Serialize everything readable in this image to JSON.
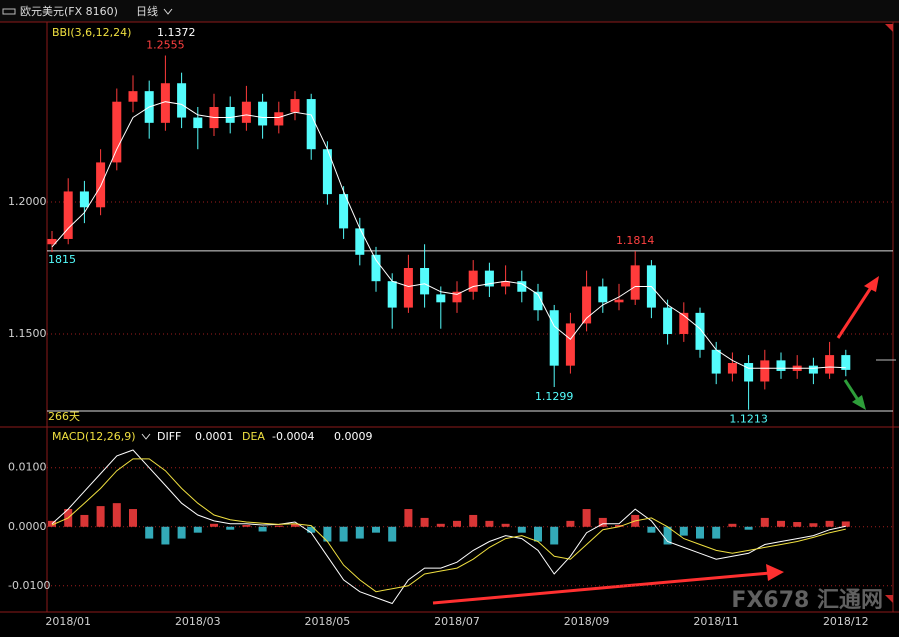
{
  "header": {
    "symbol": "欧元美元(FX 8160)",
    "period": "日线"
  },
  "watermark": "FX678 汇通网",
  "chart_data": [
    {
      "type": "candlestick",
      "categories": [
        null,
        "2018/01",
        null,
        null,
        null,
        null,
        null,
        null,
        null,
        "2018/03",
        null,
        null,
        null,
        null,
        null,
        null,
        null,
        "2018/05",
        null,
        null,
        null,
        null,
        null,
        null,
        null,
        "2018/07",
        null,
        null,
        null,
        null,
        null,
        null,
        null,
        "2018/09",
        null,
        null,
        null,
        null,
        null,
        null,
        null,
        "2018/11",
        null,
        null,
        null,
        null,
        null,
        null,
        null,
        "2018/12"
      ],
      "open": [
        1.184,
        1.186,
        1.204,
        1.198,
        1.215,
        1.238,
        1.242,
        1.23,
        1.245,
        1.232,
        1.228,
        1.236,
        1.23,
        1.238,
        1.229,
        1.234,
        1.239,
        1.22,
        1.203,
        1.19,
        1.18,
        1.17,
        1.16,
        1.175,
        1.165,
        1.162,
        1.166,
        1.174,
        1.168,
        1.17,
        1.166,
        1.159,
        1.138,
        1.154,
        1.168,
        1.162,
        1.163,
        1.176,
        1.16,
        1.15,
        1.158,
        1.144,
        1.135,
        1.139,
        1.132,
        1.14,
        1.136,
        1.138,
        1.135,
        1.142
      ],
      "high": [
        1.189,
        1.209,
        1.208,
        1.22,
        1.243,
        1.248,
        1.246,
        1.2555,
        1.249,
        1.236,
        1.241,
        1.24,
        1.244,
        1.241,
        1.238,
        1.242,
        1.241,
        1.223,
        1.206,
        1.194,
        1.183,
        1.173,
        1.18,
        1.184,
        1.168,
        1.17,
        1.178,
        1.177,
        1.176,
        1.174,
        1.169,
        1.161,
        1.158,
        1.174,
        1.171,
        1.169,
        1.1814,
        1.178,
        1.163,
        1.162,
        1.16,
        1.147,
        1.143,
        1.142,
        1.144,
        1.143,
        1.142,
        1.141,
        1.147,
        1.144
      ],
      "low": [
        1.181,
        1.184,
        1.192,
        1.195,
        1.212,
        1.234,
        1.224,
        1.227,
        1.228,
        1.22,
        1.225,
        1.226,
        1.227,
        1.224,
        1.226,
        1.231,
        1.216,
        1.199,
        1.186,
        1.176,
        1.166,
        1.152,
        1.158,
        1.16,
        1.152,
        1.158,
        1.163,
        1.164,
        1.165,
        1.162,
        1.155,
        1.1299,
        1.135,
        1.151,
        1.158,
        1.159,
        1.161,
        1.156,
        1.146,
        1.147,
        1.141,
        1.131,
        1.132,
        1.1213,
        1.129,
        1.133,
        1.133,
        1.131,
        1.133,
        1.134
      ],
      "close": [
        1.186,
        1.204,
        1.198,
        1.215,
        1.238,
        1.242,
        1.23,
        1.245,
        1.232,
        1.228,
        1.236,
        1.23,
        1.238,
        1.229,
        1.234,
        1.239,
        1.22,
        1.203,
        1.19,
        1.18,
        1.17,
        1.16,
        1.175,
        1.165,
        1.162,
        1.166,
        1.174,
        1.168,
        1.17,
        1.166,
        1.159,
        1.138,
        1.154,
        1.168,
        1.162,
        1.163,
        1.176,
        1.16,
        1.15,
        1.158,
        1.144,
        1.135,
        1.139,
        1.132,
        1.14,
        1.136,
        1.138,
        1.135,
        1.142,
        1.1364
      ],
      "up_color": "#ff3b3b",
      "down_color": "#54fcfc",
      "series": [
        {
          "name": "BBI(3,6,12,24)",
          "legend_value": "1.1372",
          "color": "#ffffff",
          "values": [
            1.183,
            1.19,
            1.196,
            1.206,
            1.22,
            1.232,
            1.236,
            1.238,
            1.237,
            1.233,
            1.232,
            1.232,
            1.233,
            1.232,
            1.232,
            1.234,
            1.233,
            1.22,
            1.204,
            1.19,
            1.178,
            1.17,
            1.168,
            1.169,
            1.166,
            1.165,
            1.168,
            1.169,
            1.17,
            1.169,
            1.165,
            1.153,
            1.148,
            1.156,
            1.161,
            1.164,
            1.168,
            1.168,
            1.161,
            1.157,
            1.152,
            1.144,
            1.14,
            1.137,
            1.137,
            1.137,
            1.137,
            1.137,
            1.1375,
            1.1372
          ]
        }
      ],
      "extremes": [
        {
          "index": 7,
          "field": "high"
        },
        {
          "index": 36,
          "field": "high"
        },
        {
          "index": 31,
          "field": "low"
        },
        {
          "index": 43,
          "field": "low"
        }
      ],
      "hline": {
        "value": 1.1815,
        "label": "1815"
      },
      "range_label": "266天",
      "ylim": [
        1.1212,
        1.2682
      ],
      "yticks": [
        {
          "value": 1.2,
          "label": "1.2000"
        },
        {
          "value": 1.15,
          "label": "1.1500"
        }
      ],
      "grid": true
    },
    {
      "type": "macd",
      "title": "MACD(12,26,9)",
      "histogram": {
        "legend_value": "0.0009",
        "up_color": "#ff4040",
        "down_color": "#3cc8d8",
        "values": [
          0.001,
          0.003,
          0.002,
          0.0035,
          0.004,
          0.003,
          -0.002,
          -0.003,
          -0.002,
          -0.001,
          0.0005,
          -0.0005,
          0.0003,
          -0.0008,
          0.0002,
          0.0005,
          -0.001,
          -0.0025,
          -0.0025,
          -0.002,
          -0.001,
          -0.0025,
          0.003,
          0.0015,
          0.0005,
          0.001,
          0.002,
          0.001,
          0.0005,
          -0.001,
          -0.0025,
          -0.003,
          0.001,
          0.003,
          0.0015,
          0.0003,
          0.002,
          -0.001,
          -0.003,
          -0.0015,
          -0.002,
          -0.002,
          0.0005,
          -0.0005,
          0.0015,
          0.001,
          0.0008,
          0.0006,
          0.001,
          0.0009
        ]
      },
      "series": [
        {
          "name": "DIFF",
          "legend_value": "0.0001",
          "color": "#ffffff",
          "values": [
            0.0005,
            0.003,
            0.006,
            0.009,
            0.012,
            0.013,
            0.01,
            0.007,
            0.004,
            0.002,
            0.001,
            0.0005,
            0.0005,
            0.0003,
            0.0004,
            0.0008,
            -0.001,
            -0.005,
            -0.009,
            -0.011,
            -0.012,
            -0.013,
            -0.009,
            -0.007,
            -0.007,
            -0.006,
            -0.004,
            -0.0025,
            -0.0015,
            -0.002,
            -0.004,
            -0.008,
            -0.005,
            -0.001,
            0.0005,
            0.0005,
            0.003,
            0.001,
            -0.0025,
            -0.0035,
            -0.0045,
            -0.0055,
            -0.005,
            -0.0045,
            -0.003,
            -0.0025,
            -0.002,
            -0.0015,
            -0.0005,
            0.0001
          ]
        },
        {
          "name": "DEA",
          "legend_value": "-0.0004",
          "color": "#f0e040",
          "values": [
            0.0003,
            0.0015,
            0.004,
            0.0065,
            0.0095,
            0.0115,
            0.0115,
            0.0095,
            0.0065,
            0.004,
            0.002,
            0.0012,
            0.0008,
            0.0006,
            0.0004,
            0.0005,
            0.0002,
            -0.0025,
            -0.0065,
            -0.009,
            -0.011,
            -0.0105,
            -0.01,
            -0.008,
            -0.0075,
            -0.007,
            -0.0055,
            -0.0035,
            -0.002,
            -0.0015,
            -0.0025,
            -0.005,
            -0.0055,
            -0.003,
            -0.0005,
            0.0,
            0.001,
            0.0015,
            0.0,
            -0.002,
            -0.003,
            -0.004,
            -0.0045,
            -0.004,
            -0.0035,
            -0.003,
            -0.0025,
            -0.0018,
            -0.001,
            -0.0004
          ]
        }
      ],
      "ylim": [
        -0.0141,
        0.0169
      ],
      "yticks": [
        {
          "value": 0.01,
          "label": "0.0100"
        },
        {
          "value": 0,
          "label": "0.0000"
        },
        {
          "value": -0.01,
          "label": "-0.0100"
        }
      ],
      "grid": true
    }
  ]
}
